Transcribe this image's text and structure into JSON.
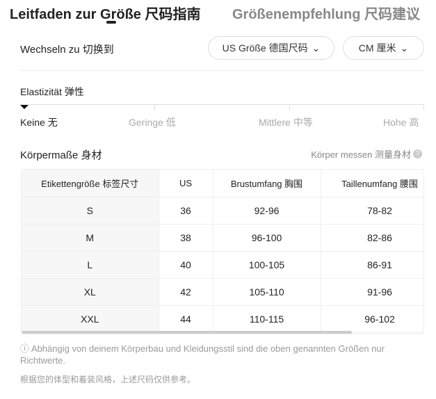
{
  "tabs": [
    {
      "label": "Leitfaden zur Größe  尺码指南",
      "active": true
    },
    {
      "label": "Größenempfehlung  尺码建议",
      "active": false
    }
  ],
  "switch": {
    "label": "Wechseln zu  切换到",
    "size_system": "US Größe  德国尺码",
    "unit": "CM  厘米"
  },
  "elasticity": {
    "label": "Elastizität  弹性",
    "levels": [
      "Keine  无",
      "Geringe  低",
      "Mittlere  中等",
      "Hohe  高"
    ],
    "selected": "Keine  无"
  },
  "body": {
    "title": "Körpermaße  身材",
    "measure_link": "Körper messen  测量身材"
  },
  "table": {
    "headers": [
      "Etikettengröße  标签尺寸",
      "US",
      "Brustumfang  胸围",
      "Taillenumfang  腰围"
    ],
    "rows": [
      [
        "S",
        "36",
        "92-96",
        "78-82"
      ],
      [
        "M",
        "38",
        "96-100",
        "82-86"
      ],
      [
        "L",
        "40",
        "100-105",
        "86-91"
      ],
      [
        "XL",
        "42",
        "105-110",
        "91-96"
      ],
      [
        "XXL",
        "44",
        "110-115",
        "96-102"
      ]
    ]
  },
  "notes": {
    "de": "ⓘ Abhängig von deinem Körperbau und Kleidungsstil sind die oben genannten Größen nur Richtwerte.",
    "zh": "根据您的体型和着装风格，上述尺码仅供参考。"
  }
}
